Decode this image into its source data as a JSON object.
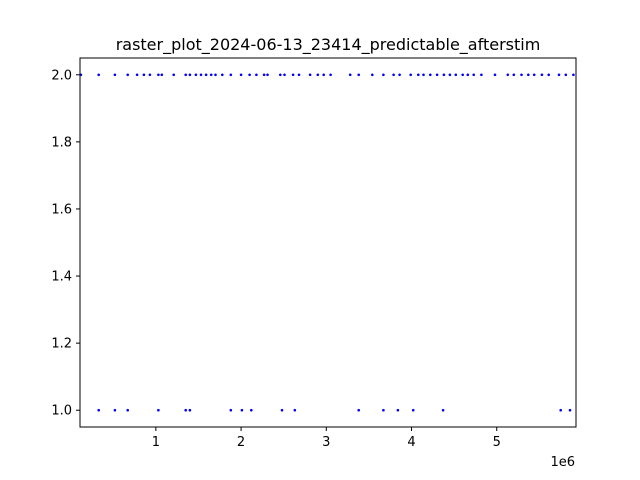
{
  "chart_data": {
    "type": "scatter",
    "title": "raster_plot_2024-06-13_23414_predictable_afterstim",
    "xlabel": "",
    "ylabel": "",
    "x_offset_text": "1e6",
    "xlim": [
      110000,
      5930000
    ],
    "ylim": [
      0.95,
      2.05
    ],
    "x_ticks": [
      1000000,
      2000000,
      3000000,
      4000000,
      5000000
    ],
    "x_tick_labels": [
      "1",
      "2",
      "3",
      "4",
      "5"
    ],
    "y_ticks": [
      1.0,
      1.2,
      1.4,
      1.6,
      1.8,
      2.0
    ],
    "y_tick_labels": [
      "1.0",
      "1.2",
      "1.4",
      "1.6",
      "1.8",
      "2.0"
    ],
    "grid": false,
    "marker_color": "#0000ff",
    "series": [
      {
        "y": 2.0,
        "x": [
          120000,
          330000,
          520000,
          670000,
          780000,
          860000,
          930000,
          1030000,
          1070000,
          1210000,
          1350000,
          1400000,
          1470000,
          1530000,
          1590000,
          1650000,
          1700000,
          1780000,
          1880000,
          2000000,
          2100000,
          2180000,
          2270000,
          2310000,
          2460000,
          2510000,
          2610000,
          2680000,
          2810000,
          2900000,
          2970000,
          3050000,
          3280000,
          3380000,
          3540000,
          3670000,
          3790000,
          3860000,
          3990000,
          4080000,
          4140000,
          4220000,
          4300000,
          4380000,
          4450000,
          4520000,
          4600000,
          4660000,
          4730000,
          4820000,
          4980000,
          5130000,
          5200000,
          5290000,
          5370000,
          5440000,
          5530000,
          5610000,
          5730000,
          5810000,
          5900000
        ]
      },
      {
        "y": 1.0,
        "x": [
          330000,
          520000,
          670000,
          1030000,
          1350000,
          1400000,
          1880000,
          2010000,
          2120000,
          2480000,
          2630000,
          3380000,
          3670000,
          3840000,
          4020000,
          4370000,
          5750000,
          5860000
        ]
      }
    ]
  }
}
